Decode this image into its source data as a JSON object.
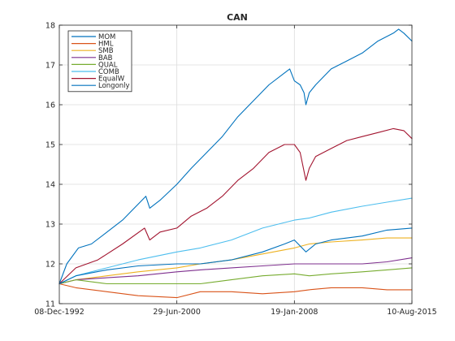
{
  "chart_data": {
    "type": "line",
    "title": "CAN",
    "xlabel": "",
    "ylabel": "",
    "x_tick_labels": [
      "08-Dec-1992",
      "29-Jun-2000",
      "19-Jan-2008",
      "10-Aug-2015"
    ],
    "x_tick_dates": [
      "1992-12-08",
      "2000-06-29",
      "2008-01-19",
      "2015-08-10"
    ],
    "xlim": [
      "1992-12-08",
      "2015-08-10"
    ],
    "ylim": [
      11,
      18
    ],
    "y_ticks": [
      11,
      12,
      13,
      14,
      15,
      16,
      17,
      18
    ],
    "grid": "on",
    "legend_placement": "top-left",
    "series": [
      {
        "name": "MOM",
        "color": "#0072BD",
        "points": [
          [
            "1992-12-08",
            11.5
          ],
          [
            "1993-06-01",
            12.0
          ],
          [
            "1994-03-01",
            12.4
          ],
          [
            "1995-01-01",
            12.5
          ],
          [
            "1996-01-01",
            12.8
          ],
          [
            "1997-01-01",
            13.1
          ],
          [
            "1998-01-01",
            13.5
          ],
          [
            "1998-07-01",
            13.7
          ],
          [
            "1998-10-01",
            13.4
          ],
          [
            "1999-06-01",
            13.6
          ],
          [
            "2000-06-29",
            14.0
          ],
          [
            "2001-06-01",
            14.4
          ],
          [
            "2002-06-01",
            14.8
          ],
          [
            "2003-06-01",
            15.2
          ],
          [
            "2004-06-01",
            15.7
          ],
          [
            "2005-06-01",
            16.1
          ],
          [
            "2006-06-01",
            16.5
          ],
          [
            "2007-06-01",
            16.8
          ],
          [
            "2007-10-01",
            16.9
          ],
          [
            "2008-01-19",
            16.6
          ],
          [
            "2008-06-01",
            16.5
          ],
          [
            "2008-09-01",
            16.3
          ],
          [
            "2008-10-15",
            16.0
          ],
          [
            "2009-01-01",
            16.3
          ],
          [
            "2009-06-01",
            16.5
          ],
          [
            "2010-06-01",
            16.9
          ],
          [
            "2011-06-01",
            17.1
          ],
          [
            "2012-06-01",
            17.3
          ],
          [
            "2013-06-01",
            17.6
          ],
          [
            "2014-06-01",
            17.8
          ],
          [
            "2014-10-01",
            17.9
          ],
          [
            "2015-02-01",
            17.8
          ],
          [
            "2015-08-10",
            17.6
          ]
        ]
      },
      {
        "name": "HML",
        "color": "#D95319",
        "points": [
          [
            "1992-12-08",
            11.5
          ],
          [
            "1994-01-01",
            11.4
          ],
          [
            "1996-01-01",
            11.3
          ],
          [
            "1998-01-01",
            11.2
          ],
          [
            "2000-06-29",
            11.15
          ],
          [
            "2002-01-01",
            11.3
          ],
          [
            "2004-01-01",
            11.3
          ],
          [
            "2006-01-01",
            11.25
          ],
          [
            "2008-01-19",
            11.3
          ],
          [
            "2009-01-01",
            11.35
          ],
          [
            "2010-06-01",
            11.4
          ],
          [
            "2012-06-01",
            11.4
          ],
          [
            "2014-01-01",
            11.35
          ],
          [
            "2015-08-10",
            11.35
          ]
        ]
      },
      {
        "name": "SMB",
        "color": "#EDB120",
        "points": [
          [
            "1992-12-08",
            11.5
          ],
          [
            "1994-01-01",
            11.6
          ],
          [
            "1996-01-01",
            11.7
          ],
          [
            "1998-01-01",
            11.8
          ],
          [
            "2000-06-29",
            11.9
          ],
          [
            "2002-01-01",
            12.0
          ],
          [
            "2004-01-01",
            12.1
          ],
          [
            "2006-01-01",
            12.25
          ],
          [
            "2008-01-19",
            12.4
          ],
          [
            "2009-01-01",
            12.5
          ],
          [
            "2010-06-01",
            12.55
          ],
          [
            "2012-06-01",
            12.6
          ],
          [
            "2014-01-01",
            12.65
          ],
          [
            "2015-08-10",
            12.65
          ]
        ]
      },
      {
        "name": "BAB",
        "color": "#7E2F8E",
        "points": [
          [
            "1992-12-08",
            11.5
          ],
          [
            "1994-01-01",
            11.6
          ],
          [
            "1996-01-01",
            11.65
          ],
          [
            "1998-01-01",
            11.7
          ],
          [
            "2000-06-29",
            11.8
          ],
          [
            "2002-01-01",
            11.85
          ],
          [
            "2004-01-01",
            11.9
          ],
          [
            "2006-01-01",
            11.95
          ],
          [
            "2008-01-19",
            12.0
          ],
          [
            "2009-01-01",
            12.0
          ],
          [
            "2010-06-01",
            12.0
          ],
          [
            "2012-06-01",
            12.0
          ],
          [
            "2014-01-01",
            12.05
          ],
          [
            "2015-08-10",
            12.15
          ]
        ]
      },
      {
        "name": "QUAL",
        "color": "#77AC30",
        "points": [
          [
            "1992-12-08",
            11.5
          ],
          [
            "1994-01-01",
            11.6
          ],
          [
            "1996-01-01",
            11.5
          ],
          [
            "1998-01-01",
            11.5
          ],
          [
            "2000-06-29",
            11.5
          ],
          [
            "2002-01-01",
            11.5
          ],
          [
            "2004-01-01",
            11.6
          ],
          [
            "2006-01-01",
            11.7
          ],
          [
            "2008-01-19",
            11.75
          ],
          [
            "2009-01-01",
            11.7
          ],
          [
            "2010-06-01",
            11.75
          ],
          [
            "2012-06-01",
            11.8
          ],
          [
            "2014-01-01",
            11.85
          ],
          [
            "2015-08-10",
            11.9
          ]
        ]
      },
      {
        "name": "COMB",
        "color": "#4DBEEE",
        "points": [
          [
            "1992-12-08",
            11.5
          ],
          [
            "1994-01-01",
            11.7
          ],
          [
            "1996-01-01",
            11.9
          ],
          [
            "1998-01-01",
            12.1
          ],
          [
            "2000-06-29",
            12.3
          ],
          [
            "2002-01-01",
            12.4
          ],
          [
            "2004-01-01",
            12.6
          ],
          [
            "2006-01-01",
            12.9
          ],
          [
            "2008-01-19",
            13.1
          ],
          [
            "2009-01-01",
            13.15
          ],
          [
            "2010-06-01",
            13.3
          ],
          [
            "2012-06-01",
            13.45
          ],
          [
            "2014-01-01",
            13.55
          ],
          [
            "2015-08-10",
            13.65
          ]
        ]
      },
      {
        "name": "EqualW",
        "color": "#A2142F",
        "points": [
          [
            "1992-12-08",
            11.5
          ],
          [
            "1994-01-01",
            11.9
          ],
          [
            "1995-06-01",
            12.1
          ],
          [
            "1997-01-01",
            12.5
          ],
          [
            "1998-06-01",
            12.9
          ],
          [
            "1998-10-01",
            12.6
          ],
          [
            "1999-06-01",
            12.8
          ],
          [
            "2000-06-29",
            12.9
          ],
          [
            "2001-06-01",
            13.2
          ],
          [
            "2002-06-01",
            13.4
          ],
          [
            "2003-06-01",
            13.7
          ],
          [
            "2004-06-01",
            14.1
          ],
          [
            "2005-06-01",
            14.4
          ],
          [
            "2006-06-01",
            14.8
          ],
          [
            "2007-06-01",
            15.0
          ],
          [
            "2008-01-19",
            15.0
          ],
          [
            "2008-06-01",
            14.8
          ],
          [
            "2008-10-15",
            14.1
          ],
          [
            "2009-01-01",
            14.4
          ],
          [
            "2009-06-01",
            14.7
          ],
          [
            "2010-06-01",
            14.9
          ],
          [
            "2011-06-01",
            15.1
          ],
          [
            "2012-06-01",
            15.2
          ],
          [
            "2013-06-01",
            15.3
          ],
          [
            "2014-06-01",
            15.4
          ],
          [
            "2015-02-01",
            15.35
          ],
          [
            "2015-08-10",
            15.15
          ]
        ]
      },
      {
        "name": "Longonly",
        "color": "#0072BD",
        "points": [
          [
            "1992-12-08",
            11.5
          ],
          [
            "1994-01-01",
            11.7
          ],
          [
            "1996-01-01",
            11.85
          ],
          [
            "1998-01-01",
            11.95
          ],
          [
            "2000-06-29",
            12.0
          ],
          [
            "2002-01-01",
            12.0
          ],
          [
            "2004-01-01",
            12.1
          ],
          [
            "2006-01-01",
            12.3
          ],
          [
            "2007-06-01",
            12.5
          ],
          [
            "2008-01-19",
            12.6
          ],
          [
            "2008-10-15",
            12.3
          ],
          [
            "2009-06-01",
            12.5
          ],
          [
            "2010-06-01",
            12.6
          ],
          [
            "2012-06-01",
            12.7
          ],
          [
            "2014-01-01",
            12.85
          ],
          [
            "2015-08-10",
            12.9
          ]
        ]
      }
    ]
  }
}
